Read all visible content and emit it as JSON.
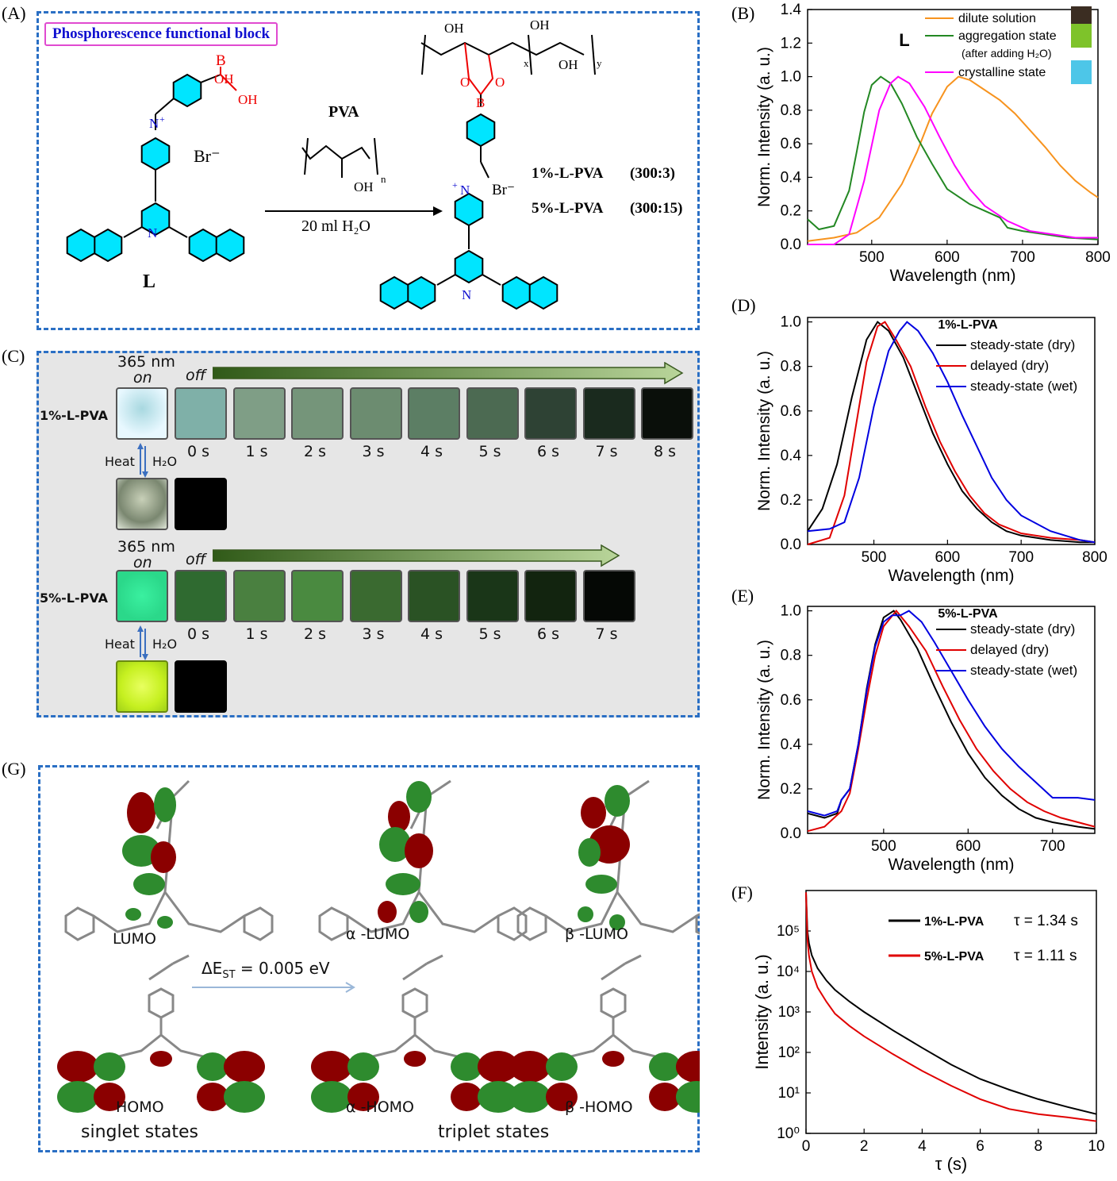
{
  "panel_labels": {
    "a": "(A)",
    "b": "(B)",
    "c": "(C)",
    "d": "(D)",
    "e": "(E)",
    "f": "(F)",
    "g": "(G)"
  },
  "colors": {
    "dash_border": "#2a6fc4",
    "ring": "#00e5ff",
    "black": "#000000",
    "red": "#e00000",
    "blue": "#0000e0",
    "orange": "#f7931e",
    "green": "#238823",
    "magenta": "#ff00ff"
  },
  "panel_a": {
    "title_box": "Phosphorescence functional block",
    "reagent": "PVA",
    "condition": "20 ml H₂O",
    "ligand_name": "L",
    "counter_ion": "Br⁻",
    "sample1": "1%-L-PVA",
    "ratio1": "(300:3)",
    "sample2": "5%-L-PVA",
    "ratio2": "(300:15)",
    "oh": "OH",
    "b_atom": "B",
    "n_atom": "N",
    "o_atom": "O",
    "sub_n": "n",
    "sub_x": "x",
    "sub_y": "y",
    "plus": "+"
  },
  "panel_c": {
    "row1": {
      "sample": "1%-L-PVA",
      "on_label": "365 nm",
      "on_word": "on",
      "off_word": "off",
      "times": [
        "0 s",
        "1 s",
        "2 s",
        "3 s",
        "4 s",
        "5 s",
        "6 s",
        "7 s",
        "8 s"
      ],
      "heat": "Heat",
      "water": "H₂O"
    },
    "row2": {
      "sample": "5%-L-PVA",
      "on_label": "365 nm",
      "on_word": "on",
      "off_word": "off",
      "times": [
        "0 s",
        "1 s",
        "2 s",
        "3 s",
        "4 s",
        "5 s",
        "6 s",
        "7 s"
      ],
      "heat": "Heat",
      "water": "H₂O"
    }
  },
  "panel_g": {
    "lumo": "LUMO",
    "homo": "HOMO",
    "a_lumo": "α -LUMO",
    "b_lumo": "β -LUMO",
    "a_homo": "α -HOMO",
    "b_homo": "β -HOMO",
    "gap": "ΔE",
    "gap_sub": "ST",
    "gap_value": "= 0.005 eV",
    "singlet": "singlet states",
    "triplet": "triplet states"
  },
  "chart_data": [
    {
      "id": "B",
      "type": "line",
      "title": "L",
      "xlabel": "Wavelength (nm)",
      "ylabel": "Norm. Intensity (a. u.)",
      "xlim": [
        415,
        800
      ],
      "ylim": [
        0,
        1.4
      ],
      "xticks": [
        "500",
        "600",
        "700",
        "800"
      ],
      "yticks": [
        "0.0",
        "0.2",
        "0.4",
        "0.6",
        "0.8",
        "1.0",
        "1.2",
        "1.4"
      ],
      "legend": "top-right",
      "series": [
        {
          "name": "dilute solution",
          "color": "#f7931e",
          "x": [
            415,
            450,
            480,
            510,
            540,
            560,
            580,
            600,
            615,
            630,
            650,
            670,
            690,
            710,
            730,
            750,
            770,
            790,
            800
          ],
          "y": [
            0.02,
            0.04,
            0.07,
            0.16,
            0.36,
            0.55,
            0.78,
            0.94,
            1.0,
            0.98,
            0.92,
            0.86,
            0.78,
            0.68,
            0.58,
            0.47,
            0.38,
            0.31,
            0.28
          ]
        },
        {
          "name": "aggregation state",
          "note": "(after adding H₂O)",
          "color": "#238823",
          "x": [
            415,
            430,
            450,
            470,
            480,
            490,
            500,
            512,
            525,
            540,
            560,
            580,
            600,
            610,
            630,
            650,
            670,
            680,
            700,
            730,
            760,
            800
          ],
          "y": [
            0.15,
            0.09,
            0.11,
            0.32,
            0.55,
            0.79,
            0.95,
            1.0,
            0.96,
            0.84,
            0.64,
            0.48,
            0.33,
            0.3,
            0.24,
            0.2,
            0.16,
            0.1,
            0.08,
            0.06,
            0.04,
            0.03
          ]
        },
        {
          "name": "crystalline state",
          "color": "#ff00ff",
          "x": [
            415,
            450,
            470,
            490,
            510,
            525,
            535,
            550,
            570,
            590,
            610,
            630,
            650,
            680,
            710,
            740,
            770,
            800
          ],
          "y": [
            0.0,
            0.0,
            0.06,
            0.38,
            0.8,
            0.96,
            1.0,
            0.96,
            0.82,
            0.64,
            0.47,
            0.33,
            0.23,
            0.14,
            0.08,
            0.06,
            0.04,
            0.04
          ]
        }
      ]
    },
    {
      "id": "D",
      "type": "line",
      "title": "1%-L-PVA",
      "xlabel": "Wavelength (nm)",
      "ylabel": "Norm. Intensity (a. u.)",
      "xlim": [
        410,
        800
      ],
      "ylim": [
        0,
        1.02
      ],
      "xticks": [
        "500",
        "600",
        "700",
        "800"
      ],
      "yticks": [
        "0.0",
        "0.2",
        "0.4",
        "0.6",
        "0.8",
        "1.0"
      ],
      "legend": "top-right",
      "series": [
        {
          "name": "steady-state (dry)",
          "color": "#000000",
          "x": [
            410,
            430,
            450,
            470,
            490,
            505,
            520,
            540,
            560,
            580,
            600,
            620,
            640,
            660,
            680,
            700,
            740,
            780,
            800
          ],
          "y": [
            0.06,
            0.16,
            0.36,
            0.66,
            0.92,
            1.0,
            0.96,
            0.84,
            0.67,
            0.5,
            0.36,
            0.24,
            0.16,
            0.1,
            0.06,
            0.04,
            0.02,
            0.01,
            0.01
          ]
        },
        {
          "name": "delayed (dry)",
          "color": "#e00000",
          "x": [
            410,
            440,
            460,
            475,
            490,
            505,
            515,
            530,
            550,
            570,
            590,
            610,
            630,
            650,
            670,
            700,
            740,
            780,
            800
          ],
          "y": [
            0.0,
            0.03,
            0.22,
            0.52,
            0.82,
            0.98,
            1.0,
            0.92,
            0.8,
            0.62,
            0.46,
            0.33,
            0.22,
            0.14,
            0.09,
            0.05,
            0.03,
            0.02,
            0.01
          ]
        },
        {
          "name": "steady-state (wet)",
          "color": "#0000e0",
          "x": [
            410,
            440,
            460,
            480,
            500,
            520,
            535,
            545,
            560,
            580,
            600,
            620,
            640,
            660,
            680,
            700,
            740,
            780,
            800
          ],
          "y": [
            0.06,
            0.07,
            0.1,
            0.3,
            0.62,
            0.87,
            0.96,
            1.0,
            0.96,
            0.86,
            0.73,
            0.58,
            0.44,
            0.3,
            0.2,
            0.13,
            0.06,
            0.02,
            0.01
          ]
        }
      ]
    },
    {
      "id": "E",
      "type": "line",
      "title": "5%-L-PVA",
      "xlabel": "Wavelength (nm)",
      "ylabel": "Norm. Intensity (a. u.)",
      "xlim": [
        410,
        750
      ],
      "ylim": [
        0,
        1.02
      ],
      "xticks": [
        "500",
        "600",
        "700"
      ],
      "yticks": [
        "0.0",
        "0.2",
        "0.4",
        "0.6",
        "0.8",
        "1.0"
      ],
      "legend": "top-right",
      "series": [
        {
          "name": "steady-state (dry)",
          "color": "#000000",
          "x": [
            410,
            430,
            445,
            450,
            460,
            470,
            480,
            490,
            500,
            512,
            520,
            540,
            560,
            580,
            600,
            620,
            640,
            660,
            680,
            700,
            730,
            750
          ],
          "y": [
            0.09,
            0.07,
            0.09,
            0.15,
            0.2,
            0.4,
            0.65,
            0.85,
            0.97,
            1.0,
            0.96,
            0.83,
            0.66,
            0.5,
            0.36,
            0.25,
            0.17,
            0.11,
            0.07,
            0.05,
            0.03,
            0.02
          ]
        },
        {
          "name": "delayed (dry)",
          "color": "#e00000",
          "x": [
            410,
            430,
            450,
            460,
            470,
            480,
            490,
            500,
            515,
            530,
            550,
            570,
            590,
            610,
            630,
            650,
            670,
            690,
            710,
            730,
            750
          ],
          "y": [
            0.01,
            0.03,
            0.1,
            0.18,
            0.38,
            0.6,
            0.8,
            0.93,
            1.0,
            0.93,
            0.82,
            0.66,
            0.51,
            0.38,
            0.28,
            0.2,
            0.14,
            0.1,
            0.07,
            0.05,
            0.03
          ]
        },
        {
          "name": "steady-state (wet)",
          "color": "#0000e0",
          "x": [
            410,
            430,
            445,
            450,
            460,
            470,
            480,
            490,
            500,
            510,
            520,
            530,
            545,
            560,
            580,
            600,
            620,
            640,
            660,
            680,
            700,
            730,
            750
          ],
          "y": [
            0.1,
            0.08,
            0.1,
            0.15,
            0.2,
            0.4,
            0.64,
            0.84,
            0.95,
            0.98,
            0.98,
            1.0,
            0.95,
            0.86,
            0.73,
            0.6,
            0.48,
            0.38,
            0.3,
            0.23,
            0.16,
            0.16,
            0.15
          ]
        }
      ]
    },
    {
      "id": "F",
      "type": "line",
      "xlabel": "τ (s)",
      "ylabel": "Intensity (a. u.)",
      "xlim": [
        0,
        10
      ],
      "ylim": [
        1,
        1000000
      ],
      "yscale": "log",
      "xticks": [
        "0",
        "2",
        "4",
        "6",
        "8",
        "10"
      ],
      "yticks": [
        "10⁰",
        "10¹",
        "10²",
        "10³",
        "10⁴",
        "10⁵"
      ],
      "legend": "top-right",
      "series": [
        {
          "name": "1%-L-PVA",
          "tau": "τ = 1.34 s",
          "color": "#000000",
          "x": [
            0,
            0.05,
            0.1,
            0.2,
            0.4,
            0.7,
            1,
            1.5,
            2,
            3,
            4,
            5,
            6,
            7,
            8,
            9,
            10
          ],
          "y": [
            900000,
            100000,
            50000,
            25000,
            12000,
            6000,
            3500,
            1800,
            1000,
            350,
            130,
            50,
            22,
            12,
            7,
            4.5,
            3
          ]
        },
        {
          "name": "5%-L-PVA",
          "tau": "τ = 1.11 s",
          "color": "#e00000",
          "x": [
            0,
            0.05,
            0.1,
            0.2,
            0.4,
            0.7,
            1,
            1.5,
            2,
            3,
            4,
            5,
            6,
            7,
            8,
            9,
            10
          ],
          "y": [
            900000,
            60000,
            25000,
            10000,
            4000,
            1800,
            900,
            450,
            250,
            90,
            35,
            15,
            7,
            4,
            3,
            2.5,
            2
          ]
        }
      ]
    }
  ]
}
